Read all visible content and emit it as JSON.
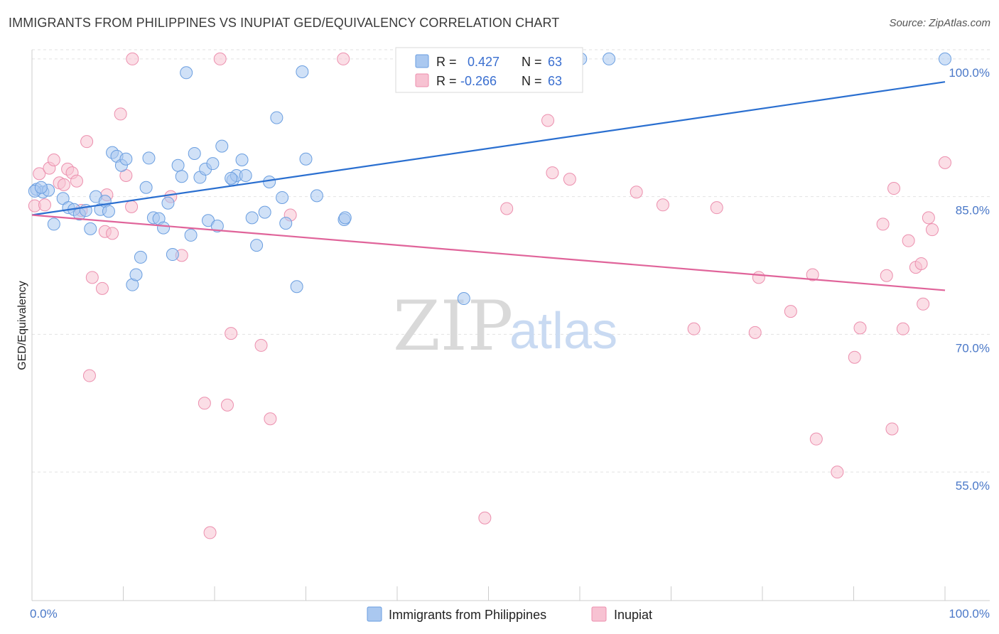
{
  "header": {
    "title": "IMMIGRANTS FROM PHILIPPINES VS INUPIAT GED/EQUIVALENCY CORRELATION CHART",
    "source": "Source: ZipAtlas.com"
  },
  "colors": {
    "blue_fill": "#aac8f0",
    "blue_stroke": "#6a9ee0",
    "blue_line": "#2a6fd0",
    "pink_fill": "#f7c2d2",
    "pink_stroke": "#ec8fae",
    "pink_line": "#e0649a",
    "axis_text": "#4a78c8",
    "grid": "#e2e2e2"
  },
  "legend": {
    "rows": [
      {
        "r_label": "R =",
        "r_value": "0.427",
        "n_label": "N =",
        "n_value": "63"
      },
      {
        "r_label": "R =",
        "r_value": "-0.266",
        "n_label": "N =",
        "n_value": "63"
      }
    ]
  },
  "watermark": {
    "zip": "ZIP",
    "atlas": "atlas"
  },
  "chart_data": {
    "type": "scatter",
    "title": "IMMIGRANTS FROM PHILIPPINES VS INUPIAT GED/EQUIVALENCY CORRELATION CHART",
    "xlabel": "",
    "ylabel": "GED/Equivalency",
    "xlim": [
      0,
      100
    ],
    "ylim": [
      41,
      101
    ],
    "x_tick_labels": [
      "0.0%",
      "100.0%"
    ],
    "y_ticks": [
      55,
      70,
      85,
      100
    ],
    "y_tick_labels": [
      "55.0%",
      "70.0%",
      "85.0%",
      "100.0%"
    ],
    "grid": "horizontal dashed",
    "legend_placement": "top-center",
    "series": [
      {
        "name": "Immigrants from Philippines",
        "color": "#aac8f0",
        "trend": {
          "x": [
            0,
            100
          ],
          "y": [
            83.0,
            97.5
          ]
        },
        "points": [
          {
            "x": 0.5,
            "y": 85.8
          },
          {
            "x": 1.2,
            "y": 85.5
          },
          {
            "x": 1.8,
            "y": 85.7
          },
          {
            "x": 2.4,
            "y": 82.0
          },
          {
            "x": 3.4,
            "y": 84.8
          },
          {
            "x": 4.0,
            "y": 83.8
          },
          {
            "x": 4.6,
            "y": 83.6
          },
          {
            "x": 5.2,
            "y": 83.1
          },
          {
            "x": 5.9,
            "y": 83.5
          },
          {
            "x": 6.4,
            "y": 81.5
          },
          {
            "x": 7.0,
            "y": 85.0
          },
          {
            "x": 7.5,
            "y": 83.6
          },
          {
            "x": 8.0,
            "y": 84.5
          },
          {
            "x": 8.4,
            "y": 83.4
          },
          {
            "x": 8.8,
            "y": 89.8
          },
          {
            "x": 9.3,
            "y": 89.4
          },
          {
            "x": 9.8,
            "y": 88.4
          },
          {
            "x": 10.3,
            "y": 89.1
          },
          {
            "x": 11.0,
            "y": 75.4
          },
          {
            "x": 11.4,
            "y": 76.5
          },
          {
            "x": 11.9,
            "y": 78.4
          },
          {
            "x": 12.5,
            "y": 86.0
          },
          {
            "x": 12.8,
            "y": 89.2
          },
          {
            "x": 13.3,
            "y": 82.7
          },
          {
            "x": 13.9,
            "y": 82.6
          },
          {
            "x": 14.4,
            "y": 81.6
          },
          {
            "x": 14.9,
            "y": 84.3
          },
          {
            "x": 15.4,
            "y": 78.7
          },
          {
            "x": 16.0,
            "y": 88.4
          },
          {
            "x": 16.4,
            "y": 87.2
          },
          {
            "x": 16.9,
            "y": 98.5
          },
          {
            "x": 17.4,
            "y": 80.8
          },
          {
            "x": 17.8,
            "y": 89.7
          },
          {
            "x": 18.4,
            "y": 87.1
          },
          {
            "x": 19.0,
            "y": 88.0
          },
          {
            "x": 19.3,
            "y": 82.4
          },
          {
            "x": 19.8,
            "y": 88.6
          },
          {
            "x": 20.3,
            "y": 81.8
          },
          {
            "x": 20.8,
            "y": 90.5
          },
          {
            "x": 22.0,
            "y": 86.8
          },
          {
            "x": 22.4,
            "y": 87.3
          },
          {
            "x": 23.0,
            "y": 89.0
          },
          {
            "x": 23.4,
            "y": 87.3
          },
          {
            "x": 24.1,
            "y": 82.7
          },
          {
            "x": 24.6,
            "y": 79.7
          },
          {
            "x": 25.5,
            "y": 83.3
          },
          {
            "x": 26.0,
            "y": 86.6
          },
          {
            "x": 26.8,
            "y": 93.6
          },
          {
            "x": 27.4,
            "y": 84.9
          },
          {
            "x": 27.8,
            "y": 82.1
          },
          {
            "x": 29.0,
            "y": 75.2
          },
          {
            "x": 29.6,
            "y": 98.6
          },
          {
            "x": 30.0,
            "y": 89.1
          },
          {
            "x": 31.2,
            "y": 85.1
          },
          {
            "x": 34.2,
            "y": 82.5
          },
          {
            "x": 34.3,
            "y": 82.7
          },
          {
            "x": 47.3,
            "y": 73.9
          },
          {
            "x": 60.1,
            "y": 100.0
          },
          {
            "x": 63.2,
            "y": 100.0
          },
          {
            "x": 100.0,
            "y": 100.0
          },
          {
            "x": 0.3,
            "y": 85.6
          },
          {
            "x": 1.0,
            "y": 86.0
          },
          {
            "x": 21.8,
            "y": 87.0
          }
        ]
      },
      {
        "name": "Inupiat",
        "color": "#f7c2d2",
        "trend": {
          "x": [
            0,
            100
          ],
          "y": [
            83.0,
            74.8
          ]
        },
        "points": [
          {
            "x": 0.3,
            "y": 84.0
          },
          {
            "x": 0.8,
            "y": 87.5
          },
          {
            "x": 1.4,
            "y": 84.1
          },
          {
            "x": 1.9,
            "y": 88.1
          },
          {
            "x": 2.4,
            "y": 89.0
          },
          {
            "x": 3.0,
            "y": 86.5
          },
          {
            "x": 3.5,
            "y": 86.3
          },
          {
            "x": 3.9,
            "y": 88.0
          },
          {
            "x": 4.4,
            "y": 87.6
          },
          {
            "x": 4.9,
            "y": 86.7
          },
          {
            "x": 5.4,
            "y": 83.5
          },
          {
            "x": 6.0,
            "y": 91.0
          },
          {
            "x": 6.3,
            "y": 65.5
          },
          {
            "x": 6.6,
            "y": 76.2
          },
          {
            "x": 7.7,
            "y": 75.0
          },
          {
            "x": 8.0,
            "y": 81.2
          },
          {
            "x": 8.2,
            "y": 85.2
          },
          {
            "x": 8.8,
            "y": 81.0
          },
          {
            "x": 9.7,
            "y": 94.0
          },
          {
            "x": 10.3,
            "y": 87.3
          },
          {
            "x": 10.9,
            "y": 83.9
          },
          {
            "x": 11.0,
            "y": 100.0
          },
          {
            "x": 15.2,
            "y": 85.0
          },
          {
            "x": 16.4,
            "y": 78.6
          },
          {
            "x": 18.9,
            "y": 62.5
          },
          {
            "x": 19.5,
            "y": 48.4
          },
          {
            "x": 20.6,
            "y": 100.0
          },
          {
            "x": 21.4,
            "y": 62.3
          },
          {
            "x": 21.8,
            "y": 70.1
          },
          {
            "x": 25.1,
            "y": 68.8
          },
          {
            "x": 26.1,
            "y": 60.8
          },
          {
            "x": 28.3,
            "y": 83.0
          },
          {
            "x": 34.1,
            "y": 100.0
          },
          {
            "x": 47.0,
            "y": 100.0
          },
          {
            "x": 49.6,
            "y": 50.0
          },
          {
            "x": 52.0,
            "y": 83.7
          },
          {
            "x": 56.5,
            "y": 93.3
          },
          {
            "x": 57.0,
            "y": 87.6
          },
          {
            "x": 58.9,
            "y": 86.9
          },
          {
            "x": 66.2,
            "y": 85.5
          },
          {
            "x": 69.1,
            "y": 84.1
          },
          {
            "x": 72.5,
            "y": 70.6
          },
          {
            "x": 75.0,
            "y": 83.8
          },
          {
            "x": 79.2,
            "y": 70.2
          },
          {
            "x": 79.6,
            "y": 76.2
          },
          {
            "x": 83.1,
            "y": 72.5
          },
          {
            "x": 85.5,
            "y": 76.5
          },
          {
            "x": 85.9,
            "y": 58.6
          },
          {
            "x": 88.2,
            "y": 55.0
          },
          {
            "x": 90.1,
            "y": 67.5
          },
          {
            "x": 90.7,
            "y": 70.7
          },
          {
            "x": 93.2,
            "y": 82.0
          },
          {
            "x": 93.6,
            "y": 76.4
          },
          {
            "x": 94.2,
            "y": 59.7
          },
          {
            "x": 94.4,
            "y": 85.9
          },
          {
            "x": 95.4,
            "y": 70.6
          },
          {
            "x": 96.0,
            "y": 80.2
          },
          {
            "x": 96.8,
            "y": 77.3
          },
          {
            "x": 97.4,
            "y": 77.7
          },
          {
            "x": 97.6,
            "y": 73.3
          },
          {
            "x": 98.2,
            "y": 82.7
          },
          {
            "x": 98.6,
            "y": 81.4
          },
          {
            "x": 100.0,
            "y": 88.7
          }
        ]
      }
    ]
  }
}
